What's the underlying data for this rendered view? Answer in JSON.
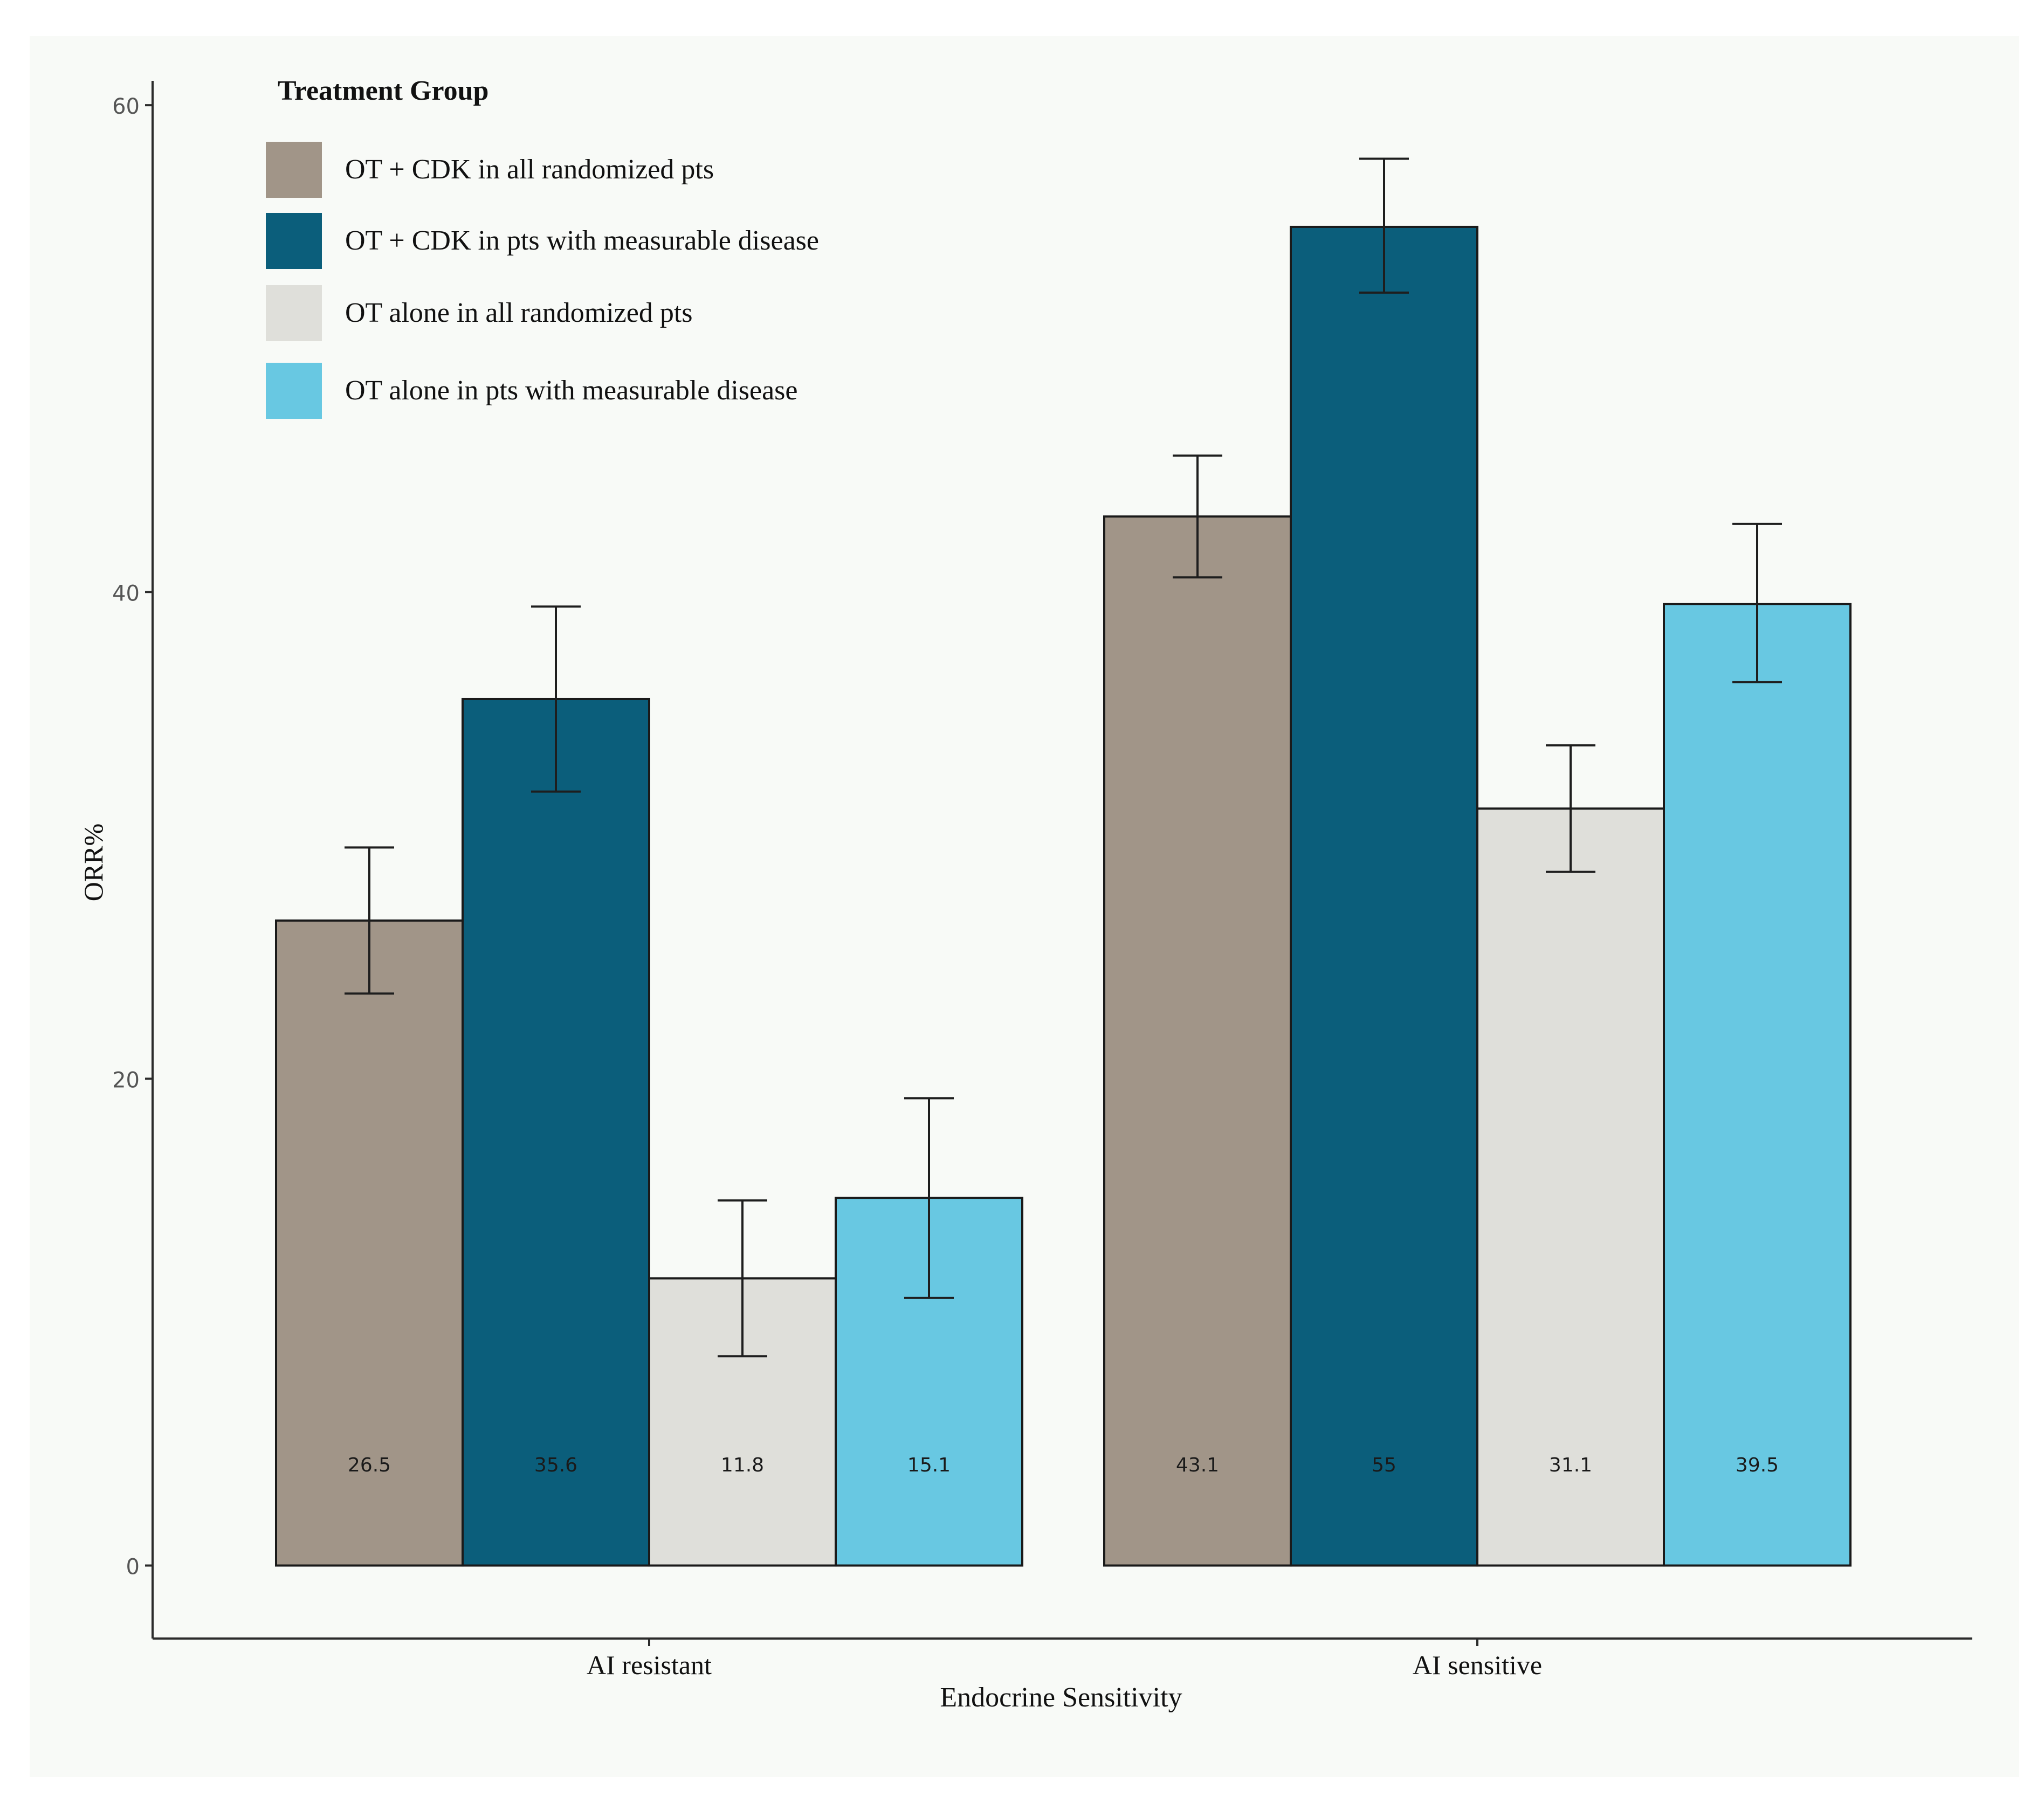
{
  "chart_data": {
    "type": "bar",
    "title": "",
    "xlabel": "Endocrine Sensitivity",
    "ylabel": "ORR%",
    "ylim": [
      -3,
      61
    ],
    "yticks": [
      0,
      20,
      40,
      60
    ],
    "categories": [
      "AI resistant",
      "AI sensitive"
    ],
    "legend": {
      "title": "Treatment Group",
      "placement": "top-left"
    },
    "series": [
      {
        "name": "OT + CDK in all randomized pts",
        "color": "#a19588",
        "values": [
          26.5,
          43.1
        ],
        "labels": [
          "26.5",
          "43.1"
        ],
        "error_low": [
          23.5,
          40.6
        ],
        "error_high": [
          29.5,
          45.6
        ]
      },
      {
        "name": "OT + CDK in pts with measurable disease",
        "color": "#0b5e7b",
        "values": [
          35.6,
          55
        ],
        "labels": [
          "35.6",
          "55"
        ],
        "error_low": [
          31.8,
          52.3
        ],
        "error_high": [
          39.4,
          57.8
        ]
      },
      {
        "name": "OT  alone in all randomized pts",
        "color": "#dfdfda",
        "values": [
          11.8,
          31.1
        ],
        "labels": [
          "11.8",
          "31.1"
        ],
        "error_low": [
          8.6,
          28.5
        ],
        "error_high": [
          15.0,
          33.7
        ]
      },
      {
        "name": "OT alone in pts with measurable disease",
        "color": "#68c8e2",
        "values": [
          15.1,
          39.5
        ],
        "labels": [
          "15.1",
          "39.5"
        ],
        "error_low": [
          11.0,
          36.3
        ],
        "error_high": [
          19.2,
          42.8
        ]
      }
    ],
    "grid": false
  },
  "colors": {
    "background": "#ffffff",
    "panel": "#f8faf7",
    "axis": "#2b2b2b",
    "text": "#111111",
    "tick_text": "#555555",
    "error_bar": "#1e1e1e"
  }
}
